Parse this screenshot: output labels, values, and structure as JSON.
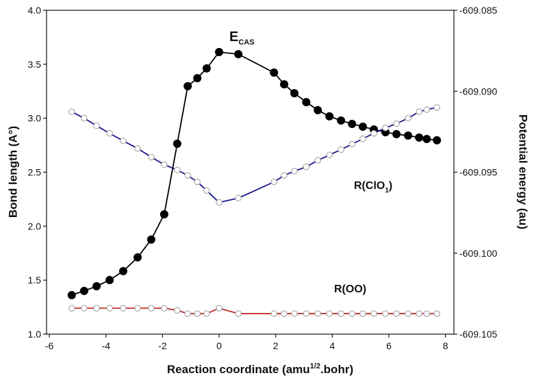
{
  "chart_data": {
    "type": "line",
    "x_label": {
      "before": "Reaction coordinate (amu",
      "sup": "1/2",
      "after": ".bohr)"
    },
    "y_label": "Bond length (A°)",
    "y2_label": "Potential energy (au)",
    "annotations": [
      {
        "text": "E",
        "sub": "CAS"
      },
      {
        "text": "R(ClO",
        "sub": "1",
        "after": ")"
      },
      {
        "text": "R(OO)"
      }
    ],
    "x": [
      -5.21,
      -4.77,
      -4.33,
      -3.87,
      -3.39,
      -2.88,
      -2.4,
      -1.94,
      -1.48,
      -1.11,
      -0.77,
      -0.44,
      0,
      0.68,
      1.94,
      2.3,
      2.66,
      3.08,
      3.49,
      3.9,
      4.31,
      4.7,
      5.08,
      5.47,
      5.88,
      6.27,
      6.68,
      7.07,
      7.34,
      7.7
    ],
    "series": [
      {
        "name": "E_CAS",
        "color": "#000000",
        "marker": "filled",
        "axis": "y2",
        "values": [
          -609.10259,
          -609.10233,
          -609.10204,
          -609.10166,
          -609.10111,
          -609.10026,
          -609.09916,
          -609.0976,
          -609.09324,
          -609.08969,
          -609.08919,
          -609.08859,
          -609.08758,
          -609.08771,
          -609.08885,
          -609.08957,
          -609.09012,
          -609.09067,
          -609.09117,
          -609.09155,
          -609.09181,
          -609.09202,
          -609.09219,
          -609.09236,
          -609.09253,
          -609.09265,
          -609.09274,
          -609.09286,
          -609.09295,
          -609.09303
        ]
      },
      {
        "name": "R(ClO1)",
        "color": "#1a1a8c",
        "marker": "open",
        "values": [
          3.06,
          3.0,
          2.93,
          2.86,
          2.79,
          2.72,
          2.64,
          2.57,
          2.52,
          2.47,
          2.41,
          2.33,
          2.22,
          2.26,
          2.41,
          2.47,
          2.51,
          2.55,
          2.61,
          2.66,
          2.71,
          2.76,
          2.81,
          2.86,
          2.91,
          2.95,
          3.0,
          3.06,
          3.08,
          3.1
        ]
      },
      {
        "name": "R(OO)",
        "color": "#c0302a",
        "marker": "open",
        "values": [
          1.24,
          1.24,
          1.24,
          1.24,
          1.24,
          1.24,
          1.24,
          1.24,
          1.22,
          1.19,
          1.19,
          1.19,
          1.24,
          1.19,
          1.19,
          1.19,
          1.19,
          1.19,
          1.19,
          1.19,
          1.19,
          1.19,
          1.19,
          1.19,
          1.19,
          1.19,
          1.19,
          1.19,
          1.19,
          1.19
        ]
      }
    ],
    "xlim": [
      -6.1,
      8.3
    ],
    "xticks": [
      -6,
      -4,
      -2,
      0,
      2,
      4,
      6,
      8
    ],
    "ylim": [
      1,
      4
    ],
    "yticks": [
      {
        "value": 1,
        "label": "1.0"
      },
      1.5,
      {
        "value": 2,
        "label": "2.0"
      },
      2.5,
      {
        "value": 3,
        "label": "3.0"
      },
      3.5,
      {
        "value": 4,
        "label": "4.0"
      }
    ],
    "y2lim": [
      -609.105,
      -609.085
    ],
    "y2ticks": [
      -609.105,
      {
        "value": -609.1,
        "label": "-609.100"
      },
      -609.095,
      {
        "value": -609.09,
        "label": "-609.090"
      },
      -609.085
    ],
    "grid": false
  }
}
